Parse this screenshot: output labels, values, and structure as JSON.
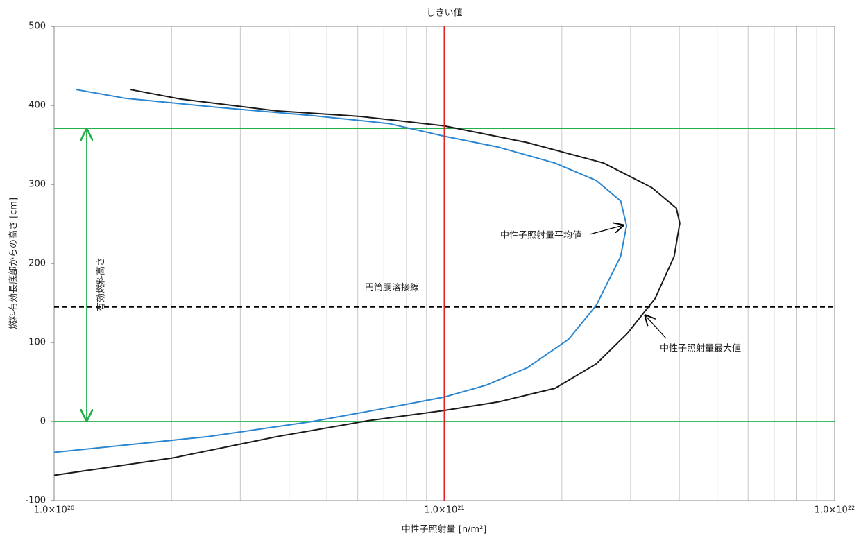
{
  "chart_data": {
    "type": "line",
    "xlabel": "中性子照射量 [n/m²]",
    "ylabel": "燃料有効長底部からの高さ [cm]",
    "xscale": "log",
    "xlim": [
      1e+20,
      1e+22
    ],
    "xticks": [
      {
        "value": 1e+20,
        "label": "1.0×10²⁰"
      },
      {
        "value": 1e+21,
        "label": "1.0×10²¹"
      },
      {
        "value": 1e+22,
        "label": "1.0×10²²"
      }
    ],
    "xminorticks": [
      2e+20,
      3e+20,
      4e+20,
      5e+20,
      6e+20,
      7e+20,
      8e+20,
      9e+20,
      2e+21,
      3e+21,
      4e+21,
      5e+21,
      6e+21,
      7e+21,
      8e+21,
      9e+21
    ],
    "ylim": [
      -100,
      500
    ],
    "yticks": [
      -100,
      0,
      100,
      200,
      300,
      400,
      500
    ],
    "grid": "x",
    "series": [
      {
        "name": "中性子照射量最大値",
        "color": "#1a1a1a",
        "x": [
          1.57e+20,
          2.11e+20,
          3.73e+20,
          6.1e+20,
          1e+21,
          1.63e+21,
          2.56e+21,
          3.4e+21,
          3.93e+21,
          4.01e+21,
          3.88e+21,
          3.47e+21,
          2.95e+21,
          2.45e+21,
          1.92e+21,
          1.38e+21,
          1e+21,
          6.37e+20,
          3.73e+20,
          2.02e+20,
          1e+20
        ],
        "values": [
          420,
          408,
          393,
          386,
          374,
          353,
          327,
          296,
          270,
          251,
          209,
          156,
          112,
          73,
          42,
          25,
          14,
          1,
          -19,
          -46,
          -68
        ]
      },
      {
        "name": "中性子照射量平均値",
        "color": "#2a86d0",
        "x": [
          1.14e+20,
          1.52e+20,
          2.69e+20,
          4.59e+20,
          7.19e+20,
          1e+21,
          1.38e+21,
          1.92e+21,
          2.45e+21,
          2.83e+21,
          2.93e+21,
          2.83e+21,
          2.45e+21,
          2.08e+21,
          1.63e+21,
          1.28e+21,
          1e+21,
          6.9e+20,
          4.59e+20,
          2.48e+20,
          1e+20
        ],
        "values": [
          420,
          409,
          397,
          387,
          377,
          361,
          347,
          327,
          305,
          279,
          248,
          209,
          147,
          104,
          68,
          46,
          31,
          16,
          0,
          -19,
          -39
        ]
      }
    ],
    "vlines": [
      {
        "value": 1e+21,
        "label": "しきい値",
        "color": "#e02020"
      }
    ],
    "hlines": [
      {
        "value": 0,
        "color": "#22b04a",
        "style": "solid"
      },
      {
        "value": 371,
        "color": "#22b04a",
        "style": "solid"
      },
      {
        "value": 145,
        "color": "#000000",
        "style": "dashed",
        "label": "円筒胴溶接線"
      }
    ],
    "span_label": "有効燃料高さ"
  }
}
